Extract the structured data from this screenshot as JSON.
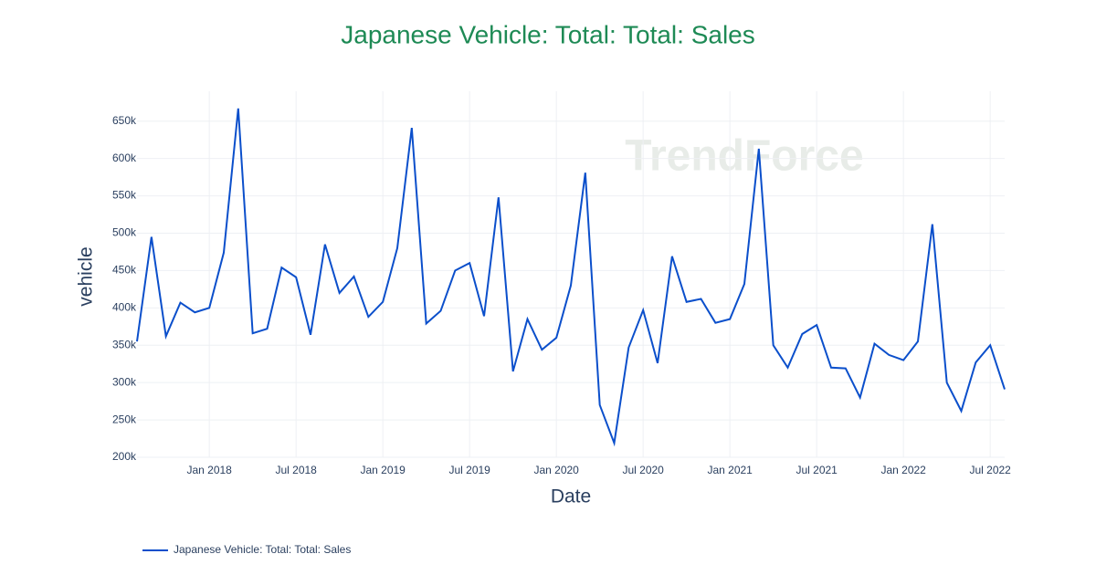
{
  "chart_data": {
    "type": "line",
    "title": "Japanese Vehicle: Total: Total: Sales",
    "x_label": "Date",
    "y_label": "vehicle",
    "watermark": "TrendForce",
    "x": [
      "2017-08",
      "2017-09",
      "2017-10",
      "2017-11",
      "2017-12",
      "2018-01",
      "2018-02",
      "2018-03",
      "2018-04",
      "2018-05",
      "2018-06",
      "2018-07",
      "2018-08",
      "2018-09",
      "2018-10",
      "2018-11",
      "2018-12",
      "2019-01",
      "2019-02",
      "2019-03",
      "2019-04",
      "2019-05",
      "2019-06",
      "2019-07",
      "2019-08",
      "2019-09",
      "2019-10",
      "2019-11",
      "2019-12",
      "2020-01",
      "2020-02",
      "2020-03",
      "2020-04",
      "2020-05",
      "2020-06",
      "2020-07",
      "2020-08",
      "2020-09",
      "2020-10",
      "2020-11",
      "2020-12",
      "2021-01",
      "2021-02",
      "2021-03",
      "2021-04",
      "2021-05",
      "2021-06",
      "2021-07",
      "2021-08",
      "2021-09",
      "2021-10",
      "2021-11",
      "2021-12",
      "2022-01",
      "2022-02",
      "2022-03",
      "2022-04",
      "2022-05",
      "2022-06",
      "2022-07",
      "2022-08"
    ],
    "series": [
      {
        "name": "Japanese Vehicle: Total: Total: Sales",
        "color": "#0b4fcb",
        "values": [
          355000,
          495000,
          362000,
          407000,
          394000,
          400000,
          474000,
          667000,
          366000,
          372000,
          454000,
          441000,
          364000,
          485000,
          420000,
          442000,
          388000,
          408000,
          480000,
          641000,
          379000,
          396000,
          450000,
          460000,
          389000,
          548000,
          315000,
          385000,
          344000,
          360000,
          430000,
          581000,
          270000,
          219000,
          347000,
          397000,
          326000,
          469000,
          408000,
          412000,
          380000,
          385000,
          432000,
          613000,
          350000,
          320000,
          365000,
          377000,
          320000,
          319000,
          280000,
          352000,
          337000,
          330000,
          355000,
          512000,
          300000,
          262000,
          327000,
          350000,
          291000
        ]
      }
    ],
    "xlim": [
      "2017-08",
      "2022-08"
    ],
    "xticks": [
      {
        "value": "2018-01",
        "label": "Jan 2018"
      },
      {
        "value": "2018-07",
        "label": "Jul 2018"
      },
      {
        "value": "2019-01",
        "label": "Jan 2019"
      },
      {
        "value": "2019-07",
        "label": "Jul 2019"
      },
      {
        "value": "2020-01",
        "label": "Jan 2020"
      },
      {
        "value": "2020-07",
        "label": "Jul 2020"
      },
      {
        "value": "2021-01",
        "label": "Jan 2021"
      },
      {
        "value": "2021-07",
        "label": "Jul 2021"
      },
      {
        "value": "2022-01",
        "label": "Jan 2022"
      },
      {
        "value": "2022-07",
        "label": "Jul 2022"
      }
    ],
    "ylim": [
      200000,
      690000
    ],
    "yticks": [
      {
        "value": 200000,
        "label": "200k"
      },
      {
        "value": 250000,
        "label": "250k"
      },
      {
        "value": 300000,
        "label": "300k"
      },
      {
        "value": 350000,
        "label": "350k"
      },
      {
        "value": 400000,
        "label": "400k"
      },
      {
        "value": 450000,
        "label": "450k"
      },
      {
        "value": 500000,
        "label": "500k"
      },
      {
        "value": 550000,
        "label": "550k"
      },
      {
        "value": 600000,
        "label": "600k"
      },
      {
        "value": 650000,
        "label": "650k"
      }
    ],
    "grid": true,
    "legend": "bottom-left"
  }
}
